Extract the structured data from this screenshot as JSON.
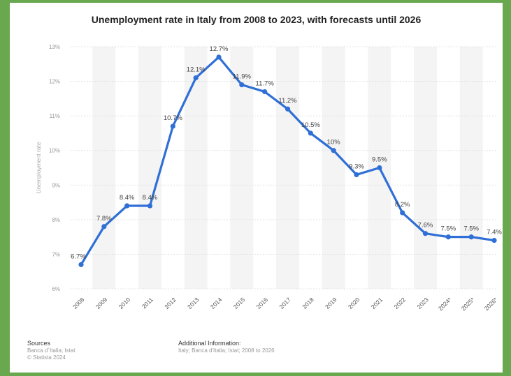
{
  "chart_data": {
    "type": "line",
    "title": "Unemployment rate in Italy from 2008 to 2023, with forecasts until 2026",
    "ylabel": "Unemployment rate",
    "xlabel": "",
    "categories": [
      "2008",
      "2009",
      "2010",
      "2011",
      "2012",
      "2013",
      "2014",
      "2015",
      "2016",
      "2017",
      "2018",
      "2019",
      "2020",
      "2021",
      "2022",
      "2023",
      "2024*",
      "2025*",
      "2026*"
    ],
    "values": [
      6.7,
      7.8,
      8.4,
      8.4,
      10.7,
      12.1,
      12.7,
      11.9,
      11.7,
      11.2,
      10.5,
      10.0,
      9.3,
      9.5,
      8.2,
      7.6,
      7.5,
      7.5,
      7.4
    ],
    "value_labels": [
      "6.7%",
      "7.8%",
      "8.4%",
      "8.4%",
      "10.7%",
      "12.1%",
      "12.7%",
      "11.9%",
      "11.7%",
      "11.2%",
      "10.5%",
      "10%",
      "9.3%",
      "9.5%",
      "8.2%",
      "7.6%",
      "7.5%",
      "7.5%",
      "7.4%"
    ],
    "yticks": [
      6,
      7,
      8,
      9,
      10,
      11,
      12,
      13
    ],
    "ytick_labels": [
      "6%",
      "7%",
      "8%",
      "9%",
      "10%",
      "11%",
      "12%",
      "13%"
    ],
    "ylim": [
      6,
      13
    ],
    "grid": true,
    "line_color": "#2f6fd6"
  },
  "footer": {
    "sources_heading": "Sources",
    "sources_line1": "Banca d´Italia; Istat",
    "sources_line2": "© Statista 2024",
    "additional_heading": "Additional Information:",
    "additional_line": "Italy; Banca d'Italia; Istat; 2008 to 2026"
  }
}
